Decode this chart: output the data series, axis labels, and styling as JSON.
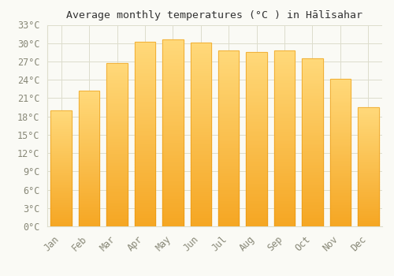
{
  "title": "Average monthly temperatures (°C ) in Hālīsahar",
  "months": [
    "Jan",
    "Feb",
    "Mar",
    "Apr",
    "May",
    "Jun",
    "Jul",
    "Aug",
    "Sep",
    "Oct",
    "Nov",
    "Dec"
  ],
  "values": [
    19.0,
    22.2,
    26.8,
    30.2,
    30.6,
    30.1,
    28.8,
    28.6,
    28.8,
    27.5,
    24.1,
    19.5
  ],
  "bar_color_bottom": "#F5A623",
  "bar_color_top": "#FFD97A",
  "bar_edge_color": "#E8950A",
  "background_color": "#FAFAF5",
  "grid_color": "#DDDDCC",
  "ylim": [
    0,
    33
  ],
  "yticks": [
    0,
    3,
    6,
    9,
    12,
    15,
    18,
    21,
    24,
    27,
    30,
    33
  ],
  "title_fontsize": 9.5,
  "tick_fontsize": 8.5,
  "bar_width": 0.75,
  "tick_label_color": "#888877"
}
